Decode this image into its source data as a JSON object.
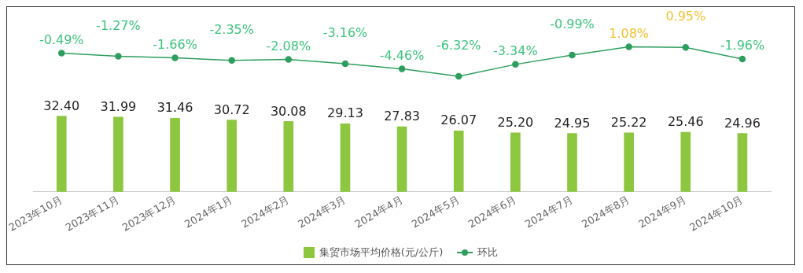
{
  "chart_data": [
    {
      "type": "line",
      "categories": [
        null,
        null,
        null,
        null,
        null,
        null,
        null,
        null,
        null,
        null,
        null,
        null,
        null
      ],
      "series": [
        {
          "name": "环比",
          "color": "#2e9e5e",
          "values": [
            -0.49,
            -1.27,
            -1.66,
            -2.35,
            -2.08,
            -3.16,
            -4.46,
            -6.32,
            -3.34,
            -0.99,
            1.08,
            0.95,
            -1.96
          ],
          "value_labels": [
            "-0.49%",
            "-1.27%",
            "-1.66%",
            "-2.35%",
            "-2.08%",
            "-3.16%",
            "-4.46%",
            "-6.32%",
            "-3.34%",
            "-0.99%",
            "1.08%",
            "0.95%",
            "-1.96%"
          ]
        }
      ],
      "legend": "bottom",
      "grid": false,
      "marker": "circle",
      "line_style": "solid",
      "tick_labels": false
    },
    {
      "type": "bar",
      "categories": [
        "2023年10月",
        "2023年11月",
        "2023年12月",
        "2024年1月",
        "2024年2月",
        "2024年3月",
        "2024年4月",
        "2024年5月",
        "2024年6月",
        "2024年7月",
        "2024年8月",
        "2024年9月",
        "2024年10月"
      ],
      "series": [
        {
          "name": "集贸市场平均价格(元/公斤)",
          "color": "#8dc63f",
          "values": [
            32.4,
            31.99,
            31.46,
            30.72,
            30.08,
            29.13,
            27.83,
            26.07,
            25.2,
            24.95,
            25.22,
            25.46,
            24.96
          ],
          "value_labels": [
            "32.40",
            "31.99",
            "31.46",
            "30.72",
            "30.08",
            "29.13",
            "27.83",
            "26.07",
            "25.20",
            "24.95",
            "25.22",
            "25.46",
            "24.96"
          ]
        }
      ],
      "legend": "bottom",
      "grid": false,
      "tick_labels": "x"
    }
  ]
}
